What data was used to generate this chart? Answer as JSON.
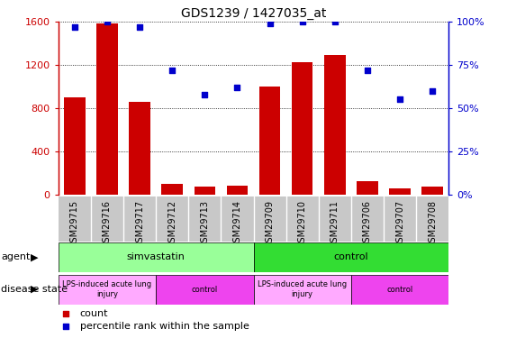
{
  "title": "GDS1239 / 1427035_at",
  "samples": [
    "GSM29715",
    "GSM29716",
    "GSM29717",
    "GSM29712",
    "GSM29713",
    "GSM29714",
    "GSM29709",
    "GSM29710",
    "GSM29711",
    "GSM29706",
    "GSM29707",
    "GSM29708"
  ],
  "bar_values": [
    900,
    1590,
    860,
    100,
    70,
    80,
    1000,
    1230,
    1290,
    120,
    55,
    75
  ],
  "dot_values": [
    97,
    100,
    97,
    72,
    58,
    62,
    99,
    100,
    100,
    72,
    55,
    60
  ],
  "bar_color": "#cc0000",
  "dot_color": "#0000cc",
  "left_ylim": [
    0,
    1600
  ],
  "right_ylim": [
    0,
    100
  ],
  "left_yticks": [
    0,
    400,
    800,
    1200,
    1600
  ],
  "right_yticks": [
    0,
    25,
    50,
    75,
    100
  ],
  "right_yticklabels": [
    "0%",
    "25%",
    "50%",
    "75%",
    "100%"
  ],
  "agent_groups": [
    {
      "label": "simvastatin",
      "start": 0,
      "end": 6,
      "color": "#99ff99"
    },
    {
      "label": "control",
      "start": 6,
      "end": 12,
      "color": "#33dd33"
    }
  ],
  "disease_groups": [
    {
      "label": "LPS-induced acute lung\ninjury",
      "start": 0,
      "end": 3,
      "color": "#ffaaff"
    },
    {
      "label": "control",
      "start": 3,
      "end": 6,
      "color": "#ee44ee"
    },
    {
      "label": "LPS-induced acute lung\ninjury",
      "start": 6,
      "end": 9,
      "color": "#ffaaff"
    },
    {
      "label": "control",
      "start": 9,
      "end": 12,
      "color": "#ee44ee"
    }
  ],
  "bar_color_legend": "#cc0000",
  "dot_color_legend": "#0000cc",
  "bg_color": "#ffffff",
  "tick_bg_color": "#c8c8c8",
  "agent_label": "agent",
  "disease_label": "disease state",
  "legend_count_label": "count",
  "legend_dot_label": "percentile rank within the sample"
}
